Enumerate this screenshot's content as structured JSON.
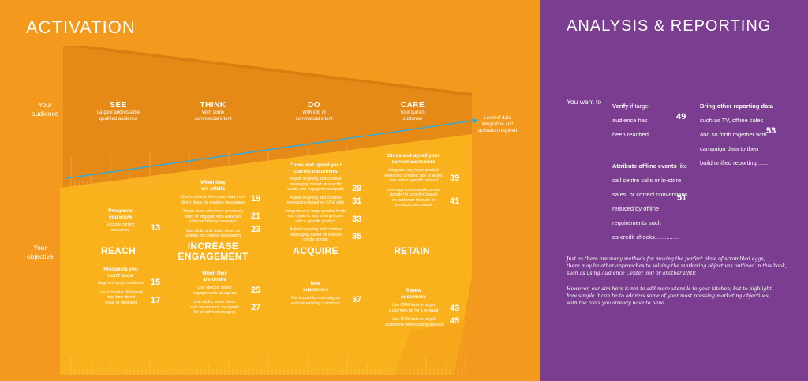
{
  "activation": {
    "title": "ACTIVATION",
    "row_labels": {
      "audience": "Your\naudience",
      "objective": "Your\nobjective"
    },
    "axis_note": "Level of data\nintegration and\nactivation required",
    "audience_stages": [
      {
        "title": "SEE",
        "sub": "Largest addressable\nqualified audience"
      },
      {
        "title": "THINK",
        "sub": "With some\ncommercial intent"
      },
      {
        "title": "DO",
        "sub": "With lots of\ncommercial intent"
      },
      {
        "title": "CARE",
        "sub": "Your current\ncustomer"
      }
    ],
    "objectives": [
      "REACH",
      "INCREASE\nENGAGEMENT",
      "ACQUIRE",
      "RETAIN"
    ],
    "groups": [
      {
        "heading": "Prospects\nyou know",
        "items": [
          {
            "text": "Exclude current\ncustomers",
            "page": "13"
          }
        ]
      },
      {
        "heading": "Prospects you\ndon't know",
        "items": [
          {
            "text": "Segment target audience",
            "page": "15"
          },
          {
            "text": "Use exclusive third-party\ndata from direct\ndeals or targeting",
            "page": "17"
          }
        ]
      },
      {
        "heading": "When they\nare offsite",
        "items": [
          {
            "text": "Use exclusive third-party data from\ndirect deals for creative messaging",
            "page": "19"
          },
          {
            "text": "Target users who have previously\nseen or engaged with AdWords\nvideo or display campaign",
            "page": "21"
          },
          {
            "text": "Use clicks and video views as\nsignals for creative messaging",
            "page": "23"
          }
        ]
      },
      {
        "heading": "When they\nare onsite",
        "items": [
          {
            "text": "Use specific onsite\nengagements as signals",
            "page": "25"
          },
          {
            "text": "Use clicks, video views\nand conversions as signals\nfor creative messaging",
            "page": "27"
          }
        ]
      },
      {
        "heading": "Cross and upsell your\ncurrent customers",
        "items": [
          {
            "text": "Adjust targeting and creative\nmessaging based on specific\nonsite and engagement signals",
            "page": "29"
          },
          {
            "text": "Adjust targeting and creative\nmessaging based on CRM data",
            "page": "31"
          },
          {
            "text": "Integrate very large product feeds\ninto dynamic ads to target user\nwith a specific product",
            "page": "33"
          },
          {
            "text": "Adjust targeting and creative\nmessaging based on specific\nonsite signals",
            "page": "35"
          }
        ]
      },
      {
        "heading": "New\ncustomers",
        "items": [
          {
            "text": "For acquisition campaigns,\nexclude existing customers",
            "page": "37"
          }
        ]
      },
      {
        "heading": "Cross and upsell your\ncurrent customers",
        "items": [
          {
            "text": "Integrate very large product\nfeeds into dynamic ads to target\nuser with a specific product",
            "page": "39"
          },
          {
            "text": "Leverage user-specific onsite\nsignals for targeting based\non customer lifecycle or\nproducts purchased",
            "page": "41"
          }
        ]
      },
      {
        "heading": "Renew\ncustomers",
        "items": [
          {
            "text": "Use CRM data to target\ncustomers up for a renewal",
            "page": "43"
          },
          {
            "text": "Use CRM data to target\ncustomers with existing products",
            "page": "45"
          }
        ]
      }
    ]
  },
  "analysis": {
    "title": "ANALYSIS & REPORTING",
    "you_want_to": "You want to",
    "verify": {
      "bold": "Verify",
      "text": " if target\naudience has\nbeen reached",
      "dots": "..............",
      "page": "49"
    },
    "bring": {
      "bold": "Bring other reporting data",
      "text": "\nsuch as TV, offline sales\nand so forth together with\ncampaign data to then\nbuild unified reporting",
      "dots": " .......",
      "page": "53"
    },
    "attribute": {
      "bold": "Attribute offline events",
      "text": " like\ncall centre calls or in-store\nsales, or correct conversions\nreduced by offline\nrequirements such\nas credit checks",
      "dots": "...............",
      "page": "51"
    },
    "note1": "Just as there are many methods for making the perfect plate of scrambled eggs,\nthere may be other approaches to solving the marketing objectives outlined in this book,\nsuch as using Audience Center 360 or another DMP.",
    "note2": "However, our aim here is not to add more utensils to your kitchen, but to highlight\nhow simple it can be to address some of your most pressing marketing objectives\nwith the tools you already have to hand."
  },
  "colors": {
    "orange": "#f39a1e",
    "purple": "#7b3d8f",
    "yellow": "#f9b21c",
    "arrow": "#3aa7cf"
  }
}
